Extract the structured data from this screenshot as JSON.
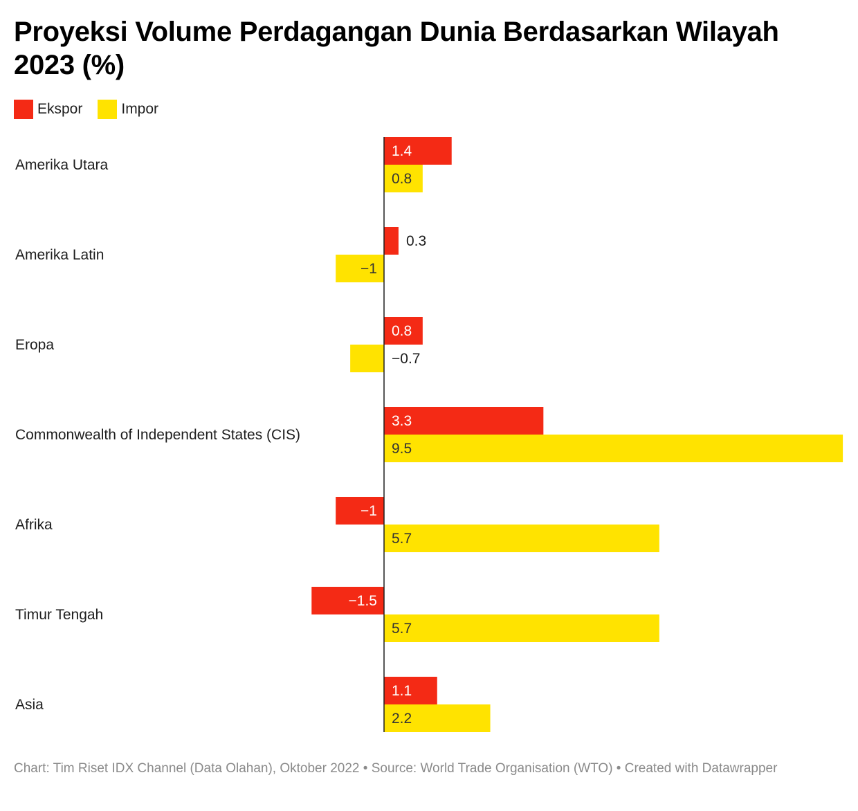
{
  "title": "Proyeksi Volume Perdagangan Dunia Berdasarkan Wilayah 2023 (%)",
  "legend": [
    {
      "label": "Ekspor",
      "color": "#f42a15"
    },
    {
      "label": "Impor",
      "color": "#ffe300"
    }
  ],
  "footer": "Chart: Tim Riset IDX Channel (Data Olahan), Oktober 2022 • Source: World Trade Organisation (WTO) • Created with Datawrapper",
  "chart_data": {
    "type": "bar",
    "orientation": "horizontal",
    "title": "Proyeksi Volume Perdagangan Dunia Berdasarkan Wilayah 2023 (%)",
    "categories": [
      "Amerika Utara",
      "Amerika Latin",
      "Eropa",
      "Commonwealth of Independent States (CIS)",
      "Afrika",
      "Timur Tengah",
      "Asia"
    ],
    "series": [
      {
        "name": "Ekspor",
        "color": "#f42a15",
        "values": [
          1.4,
          0.3,
          0.8,
          3.3,
          -1,
          -1.5,
          1.1
        ]
      },
      {
        "name": "Impor",
        "color": "#ffe300",
        "values": [
          0.8,
          -1,
          -0.7,
          9.5,
          5.7,
          5.7,
          2.2
        ]
      }
    ],
    "xlim": [
      -1.5,
      9.5
    ],
    "xlabel": "",
    "ylabel": "",
    "grid": false,
    "legend_position": "top-left"
  }
}
